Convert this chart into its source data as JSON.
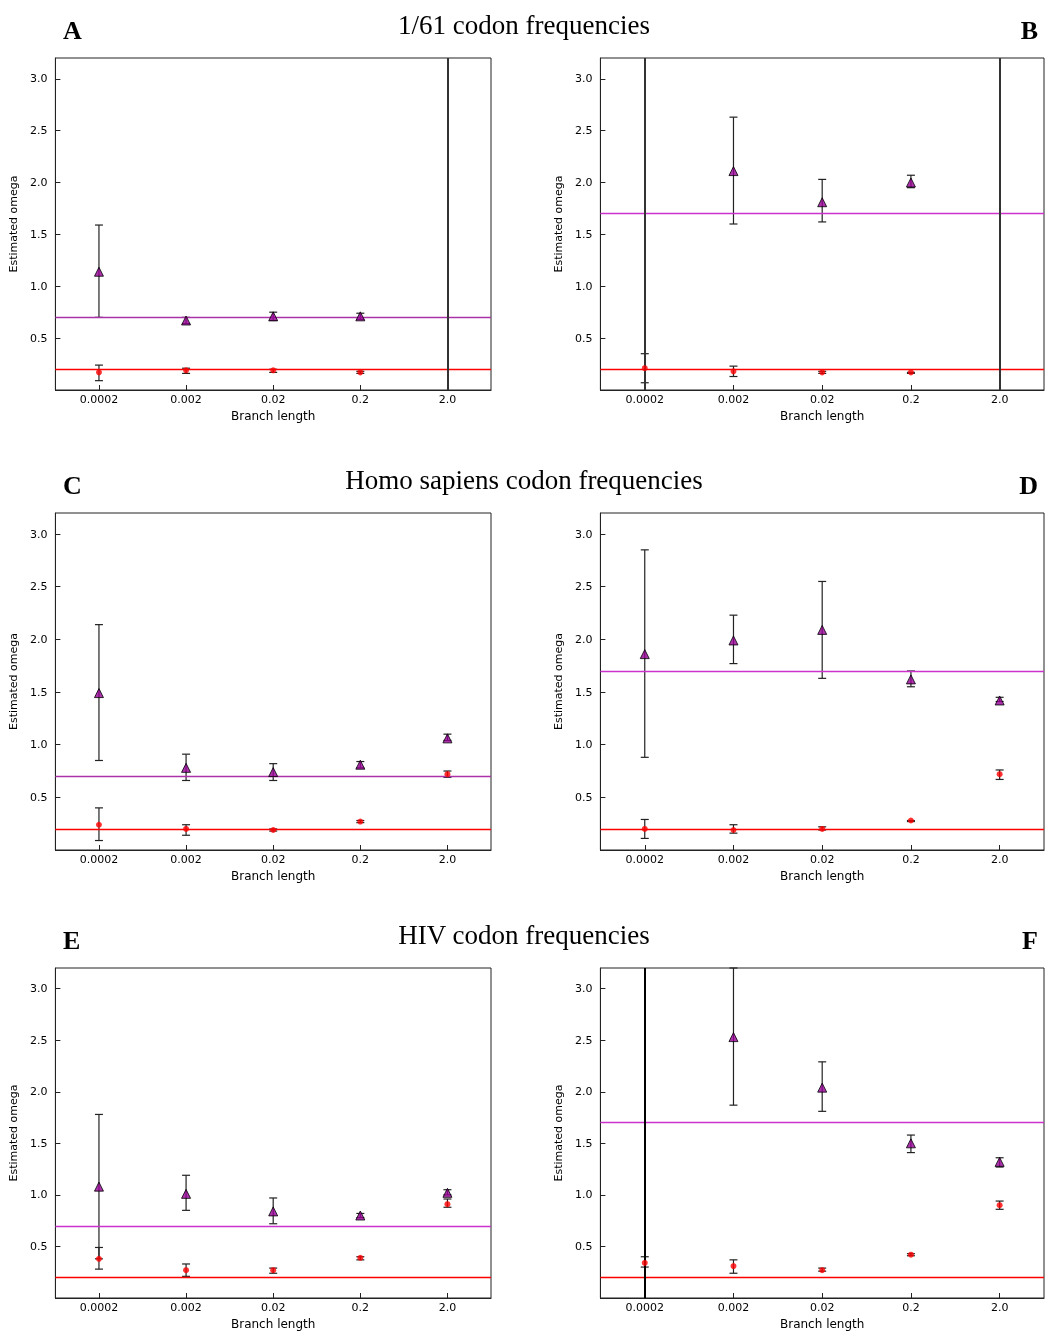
{
  "chart_data": [
    {
      "type": "scatter",
      "title": "A",
      "subtitle": "1/61 codon frequencies",
      "xlabel": "Branch length",
      "ylabel": "Estimated omega",
      "categories": [
        "0.0002",
        "0.002",
        "0.02",
        "0.2",
        "2.0"
      ],
      "ylim": [
        0,
        3.2
      ],
      "yticks": [
        0.5,
        {
          "value": 1,
          "label": "1.0"
        },
        1.5,
        {
          "value": 2,
          "label": "2.0"
        },
        2.5,
        {
          "value": 3,
          "label": "3.0"
        }
      ],
      "grid": false,
      "series": [
        {
          "color": "#990099",
          "marker": "triangle",
          "values": [
            1.14,
            0.67,
            0.71,
            0.71,
            null
          ],
          "errors": [
            [
              0.7,
              1.59
            ],
            [
              0.64,
              0.7
            ],
            [
              0.67,
              0.75
            ],
            [
              0.68,
              0.74
            ],
            null
          ]
        },
        {
          "color": "#ff0000",
          "marker": "circle",
          "values": [
            0.17,
            0.19,
            0.19,
            0.17,
            null
          ],
          "errors": [
            [
              0.09,
              0.24
            ],
            [
              0.16,
              0.21
            ],
            [
              0.17,
              0.2
            ],
            [
              0.16,
              0.18
            ],
            null
          ]
        }
      ],
      "ref_lines": [
        {
          "axis": "y",
          "value": 0.7,
          "color": "#aa33aa"
        },
        {
          "axis": "y",
          "value": 0.2,
          "color": "#ff0000"
        },
        {
          "axis": "x",
          "value": "2.0",
          "color": "#333333"
        }
      ]
    },
    {
      "type": "scatter",
      "title": "B",
      "xlabel": "Branch length",
      "ylabel": "Estimated omega",
      "categories": [
        "0.0002",
        "0.002",
        "0.02",
        "0.2",
        "2.0"
      ],
      "ylim": [
        0,
        3.2
      ],
      "yticks": [
        0.5,
        {
          "value": 1,
          "label": "1.0"
        },
        1.5,
        {
          "value": 2,
          "label": "2.0"
        },
        2.5,
        {
          "value": 3,
          "label": "3.0"
        }
      ],
      "grid": false,
      "series": [
        {
          "color": "#990099",
          "marker": "triangle",
          "values": [
            null,
            2.11,
            1.81,
            2.0,
            null
          ],
          "errors": [
            null,
            [
              1.6,
              2.63
            ],
            [
              1.62,
              2.03
            ],
            [
              1.95,
              2.07
            ],
            null
          ]
        },
        {
          "color": "#ff0000",
          "marker": "circle",
          "values": [
            0.21,
            0.18,
            0.17,
            0.17,
            null
          ],
          "errors": [
            [
              0.07,
              0.35
            ],
            [
              0.13,
              0.23
            ],
            [
              0.16,
              0.18
            ],
            [
              0.16,
              0.17
            ],
            null
          ]
        }
      ],
      "ref_lines": [
        {
          "axis": "y",
          "value": 1.7,
          "color": "#cc33cc"
        },
        {
          "axis": "y",
          "value": 0.2,
          "color": "#ff0000"
        },
        {
          "axis": "x",
          "value": "0.0002",
          "color": "#333333"
        },
        {
          "axis": "x",
          "value": "2.0",
          "color": "#333333"
        }
      ]
    },
    {
      "type": "scatter",
      "title": "C",
      "subtitle": "Homo sapiens codon frequencies",
      "xlabel": "Branch length",
      "ylabel": "Estimated omega",
      "categories": [
        "0.0002",
        "0.002",
        "0.02",
        "0.2",
        "2.0"
      ],
      "ylim": [
        0,
        3.2
      ],
      "yticks": [
        0.5,
        {
          "value": 1,
          "label": "1.0"
        },
        1.5,
        {
          "value": 2,
          "label": "2.0"
        },
        2.5,
        {
          "value": 3,
          "label": "3.0"
        }
      ],
      "grid": false,
      "series": [
        {
          "color": "#990099",
          "marker": "triangle",
          "values": [
            1.49,
            0.78,
            0.74,
            0.81,
            1.06
          ],
          "errors": [
            [
              0.85,
              2.14
            ],
            [
              0.66,
              0.91
            ],
            [
              0.66,
              0.82
            ],
            [
              0.78,
              0.84
            ],
            [
              1.04,
              1.1
            ]
          ]
        },
        {
          "color": "#ff0000",
          "marker": "circle",
          "values": [
            0.24,
            0.2,
            0.19,
            0.27,
            0.72
          ],
          "errors": [
            [
              0.09,
              0.4
            ],
            [
              0.14,
              0.24
            ],
            [
              0.18,
              0.2
            ],
            [
              0.26,
              0.28
            ],
            [
              0.69,
              0.75
            ]
          ]
        }
      ],
      "ref_lines": [
        {
          "axis": "y",
          "value": 0.7,
          "color": "#aa33aa"
        },
        {
          "axis": "y",
          "value": 0.2,
          "color": "#ff0000"
        }
      ]
    },
    {
      "type": "scatter",
      "title": "D",
      "xlabel": "Branch length",
      "ylabel": "Estimated omega",
      "categories": [
        "0.0002",
        "0.002",
        "0.02",
        "0.2",
        "2.0"
      ],
      "ylim": [
        0,
        3.2
      ],
      "yticks": [
        0.5,
        {
          "value": 1,
          "label": "1.0"
        },
        1.5,
        {
          "value": 2,
          "label": "2.0"
        },
        2.5,
        {
          "value": 3,
          "label": "3.0"
        }
      ],
      "grid": false,
      "series": [
        {
          "color": "#990099",
          "marker": "triangle",
          "values": [
            1.86,
            1.99,
            2.09,
            1.62,
            1.42
          ],
          "errors": [
            [
              0.88,
              2.85
            ],
            [
              1.77,
              2.23
            ],
            [
              1.63,
              2.55
            ],
            [
              1.55,
              1.7
            ],
            [
              1.41,
              1.45
            ]
          ]
        },
        {
          "color": "#ff0000",
          "marker": "circle",
          "values": [
            0.2,
            0.19,
            0.2,
            0.28,
            0.72
          ],
          "errors": [
            [
              0.11,
              0.29
            ],
            [
              0.16,
              0.24
            ],
            [
              0.19,
              0.22
            ],
            [
              0.27,
              0.28
            ],
            [
              0.67,
              0.76
            ]
          ]
        }
      ],
      "ref_lines": [
        {
          "axis": "y",
          "value": 1.7,
          "color": "#cc33cc"
        },
        {
          "axis": "y",
          "value": 0.2,
          "color": "#ff0000"
        }
      ]
    },
    {
      "type": "scatter",
      "title": "E",
      "subtitle": "HIV codon frequencies",
      "xlabel": "Branch length",
      "ylabel": "Estimated omega",
      "categories": [
        "0.0002",
        "0.002",
        "0.02",
        "0.2",
        "2.0"
      ],
      "ylim": [
        0,
        3.2
      ],
      "yticks": [
        0.5,
        {
          "value": 1,
          "label": "1.0"
        },
        1.5,
        {
          "value": 2,
          "label": "2.0"
        },
        2.5,
        {
          "value": 3,
          "label": "3.0"
        }
      ],
      "grid": false,
      "series": [
        {
          "color": "#990099",
          "marker": "triangle",
          "values": [
            1.08,
            1.01,
            0.84,
            0.8,
            1.02
          ],
          "errors": [
            [
              0.38,
              1.78
            ],
            [
              0.85,
              1.19
            ],
            [
              0.72,
              0.97
            ],
            [
              0.78,
              0.82
            ],
            [
              1.0,
              1.05
            ]
          ]
        },
        {
          "color": "#ff0000",
          "marker": "circle",
          "values": [
            0.38,
            0.27,
            0.27,
            0.39,
            0.91
          ],
          "errors": [
            [
              0.28,
              0.49
            ],
            [
              0.21,
              0.33
            ],
            [
              0.24,
              0.29
            ],
            [
              0.37,
              0.4
            ],
            [
              0.88,
              0.96
            ]
          ]
        }
      ],
      "ref_lines": [
        {
          "axis": "y",
          "value": 0.7,
          "color": "#cc33cc"
        },
        {
          "axis": "y",
          "value": 0.2,
          "color": "#ff0000"
        }
      ]
    },
    {
      "type": "scatter",
      "title": "F",
      "xlabel": "Branch length",
      "ylabel": "Estimated omega",
      "categories": [
        "0.0002",
        "0.002",
        "0.02",
        "0.2",
        "2.0"
      ],
      "ylim": [
        0,
        3.2
      ],
      "yticks": [
        0.5,
        {
          "value": 1,
          "label": "1.0"
        },
        1.5,
        {
          "value": 2,
          "label": "2.0"
        },
        2.5,
        {
          "value": 3,
          "label": "3.0"
        }
      ],
      "grid": false,
      "series": [
        {
          "color": "#990099",
          "marker": "triangle",
          "values": [
            null,
            2.53,
            2.04,
            1.5,
            1.32
          ],
          "errors": [
            null,
            [
              1.87,
              3.2
            ],
            [
              1.81,
              2.29
            ],
            [
              1.41,
              1.58
            ],
            [
              1.27,
              1.36
            ]
          ]
        },
        {
          "color": "#ff0000",
          "marker": "circle",
          "values": [
            0.34,
            0.31,
            0.27,
            0.42,
            0.9
          ],
          "errors": [
            [
              0.3,
              0.4
            ],
            [
              0.24,
              0.37
            ],
            [
              0.26,
              0.29
            ],
            [
              0.41,
              0.43
            ],
            [
              0.86,
              0.94
            ]
          ]
        }
      ],
      "ref_lines": [
        {
          "axis": "y",
          "value": 1.7,
          "color": "#cc33cc"
        },
        {
          "axis": "y",
          "value": 0.2,
          "color": "#ff0000"
        },
        {
          "axis": "x",
          "value": "0.0002",
          "color": "#000000"
        }
      ]
    }
  ]
}
